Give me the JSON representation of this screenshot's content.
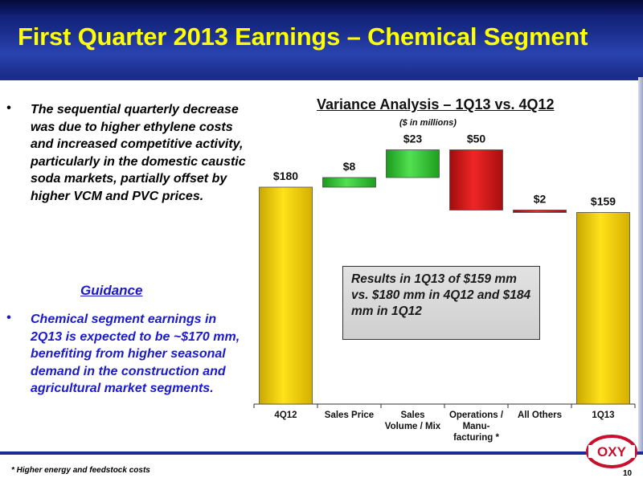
{
  "header": {
    "title": "First Quarter 2013 Earnings – Chemical Segment"
  },
  "left": {
    "bullet_symbol": "•",
    "bullet1": "The sequential quarterly decrease was due to higher ethylene costs and increased competitive activity, particularly in the domestic caustic soda markets, partially offset by higher VCM and PVC prices.",
    "guidance_heading": "Guidance",
    "bullet2": "Chemical segment earnings in 2Q13 is expected to be ~$170 mm, benefiting from higher seasonal demand in the construction and agricultural market segments."
  },
  "callout": {
    "text": "Results in 1Q13 of $159 mm vs. $180 mm in 4Q12 and $184 mm in 1Q12"
  },
  "footer": {
    "footnote": "* Higher energy and feedstock costs",
    "page": "10"
  },
  "logo": {
    "text": "OXY",
    "colors": {
      "ring": "#c8102e",
      "text": "#c8102e"
    }
  },
  "colors": {
    "total_bar": "#f2d000",
    "increase_bar": "#2fbf2f",
    "decrease_bar": "#c81414",
    "header": "#1a2d8c",
    "title": "#ffff00",
    "guidance_text": "#1a1acc"
  },
  "chart_data": {
    "type": "bar",
    "subtype": "waterfall",
    "title": "Variance Analysis – 1Q13 vs. 4Q12",
    "subtitle": "($ in millions)",
    "categories": [
      [
        "4Q12"
      ],
      [
        "Sales Price"
      ],
      [
        "Sales",
        "Volume /  Mix"
      ],
      [
        "Operations /",
        "Manu-",
        "facturing *"
      ],
      [
        "All Others"
      ],
      [
        "1Q13"
      ]
    ],
    "values": [
      180,
      8,
      23,
      -50,
      -2,
      159
    ],
    "kinds": [
      "total",
      "increase",
      "increase",
      "decrease",
      "decrease",
      "total"
    ],
    "data_labels": [
      "$180",
      "$8",
      "$23",
      "$50",
      "$2",
      "$159"
    ],
    "ylim": [
      0,
      220
    ],
    "grid": false
  }
}
